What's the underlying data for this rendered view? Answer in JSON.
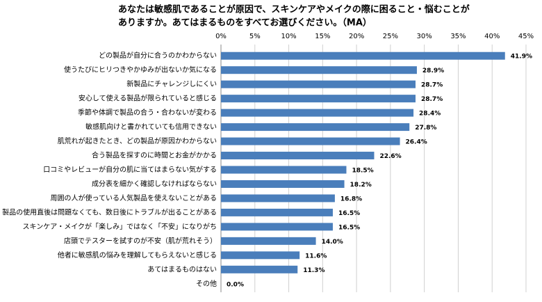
{
  "chart_data": {
    "type": "bar",
    "orientation": "horizontal",
    "title": [
      "あなたは敏感肌であることが原因で、スキンケアやメイクの際に困ること・悩むことが",
      "ありますか。あてはまるものをすべてお選びください。（MA）"
    ],
    "categories": [
      "どの製品が自分に合うのかわからない",
      "使うたびにヒリつきやかゆみが出ないか気になる",
      "新製品にチャレンジしにくい",
      "安心して使える製品が限られていると感じる",
      "季節や体調で製品の合う・合わないが変わる",
      "敏感肌向けと書かれていても信用できない",
      "肌荒れが起きたとき、どの製品が原因かわからない",
      "合う製品を探すのに時間とお金がかかる",
      "口コミやレビューが自分の肌に当てはまらない気がする",
      "成分表を細かく確認しなければならない",
      "周囲の人が使っている人気製品を使えないことがある",
      "製品の使用直後は問題なくても、数日後にトラブルが出ることがある",
      "スキンケア・メイクが「楽しみ」ではなく「不安」になりがち",
      "店頭でテスターを試すのが不安（肌が荒れそう）",
      "他者に敏感肌の悩みを理解してもらえないと感じる",
      "あてはまるものはない",
      "その他"
    ],
    "values": [
      41.9,
      28.9,
      28.7,
      28.7,
      28.4,
      27.8,
      26.4,
      22.6,
      18.5,
      18.2,
      16.8,
      16.5,
      16.5,
      14.0,
      11.6,
      11.3,
      0.0
    ],
    "value_labels": [
      "41.9%",
      "28.9%",
      "28.7%",
      "28.7%",
      "28.4%",
      "27.8%",
      "26.4%",
      "22.6%",
      "18.5%",
      "18.2%",
      "16.8%",
      "16.5%",
      "16.5%",
      "14.0%",
      "11.6%",
      "11.3%",
      "0.0%"
    ],
    "color": "#4a7ebb",
    "xlim": [
      0,
      45
    ],
    "xticks": [
      {
        "value": 0,
        "label": "0%"
      },
      {
        "value": 5,
        "label": "5%"
      },
      {
        "value": 10,
        "label": "10%"
      },
      {
        "value": 15,
        "label": "15%"
      },
      {
        "value": 20,
        "label": "20%"
      },
      {
        "value": 25,
        "label": "25%"
      },
      {
        "value": 30,
        "label": "30%"
      },
      {
        "value": 35,
        "label": "35%"
      },
      {
        "value": 40,
        "label": "40%"
      },
      {
        "value": 45,
        "label": "45%"
      }
    ],
    "grid": true
  }
}
